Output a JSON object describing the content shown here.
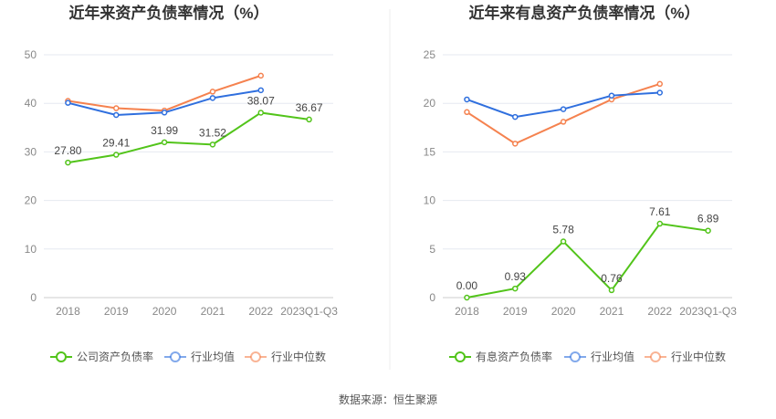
{
  "source": "数据来源：恒生聚源",
  "chart_data": [
    {
      "type": "line",
      "title": "近年来资产负债率情况（%）",
      "categories": [
        "2018",
        "2019",
        "2020",
        "2021",
        "2022",
        "2023Q1-Q3"
      ],
      "ylim": [
        0,
        50
      ],
      "yticks": [
        "0",
        "10",
        "20",
        "30",
        "40",
        "50"
      ],
      "grid": true,
      "legend_position": "bottom",
      "series": [
        {
          "name": "公司资产负债率",
          "color": "#52c41a",
          "values": [
            27.8,
            29.41,
            31.99,
            31.52,
            38.07,
            36.67
          ],
          "labels": [
            "27.80",
            "29.41",
            "31.99",
            "31.52",
            "38.07",
            "36.67"
          ]
        },
        {
          "name": "行业均值",
          "color": "#2f6fde",
          "values": [
            40.1,
            37.6,
            38.1,
            41.1,
            42.7,
            null
          ]
        },
        {
          "name": "行业中位数",
          "color": "#f5824f",
          "values": [
            40.5,
            39.0,
            38.5,
            42.4,
            45.7,
            null
          ]
        }
      ]
    },
    {
      "type": "line",
      "title": "近年来有息资产负债率情况（%）",
      "categories": [
        "2018",
        "2019",
        "2020",
        "2021",
        "2022",
        "2023Q1-Q3"
      ],
      "ylim": [
        0,
        25
      ],
      "yticks": [
        "0",
        "5",
        "10",
        "15",
        "20",
        "25"
      ],
      "grid": true,
      "legend_position": "bottom",
      "series": [
        {
          "name": "有息资产负债率",
          "color": "#52c41a",
          "values": [
            0.0,
            0.93,
            5.78,
            0.76,
            7.61,
            6.89
          ],
          "labels": [
            "0.00",
            "0.93",
            "5.78",
            "0.76",
            "7.61",
            "6.89"
          ]
        },
        {
          "name": "行业均值",
          "color": "#2f6fde",
          "values": [
            20.4,
            18.6,
            19.4,
            20.8,
            21.1,
            null
          ]
        },
        {
          "name": "行业中位数",
          "color": "#f5824f",
          "values": [
            19.1,
            15.85,
            18.1,
            20.4,
            22.0,
            null
          ]
        }
      ]
    }
  ]
}
